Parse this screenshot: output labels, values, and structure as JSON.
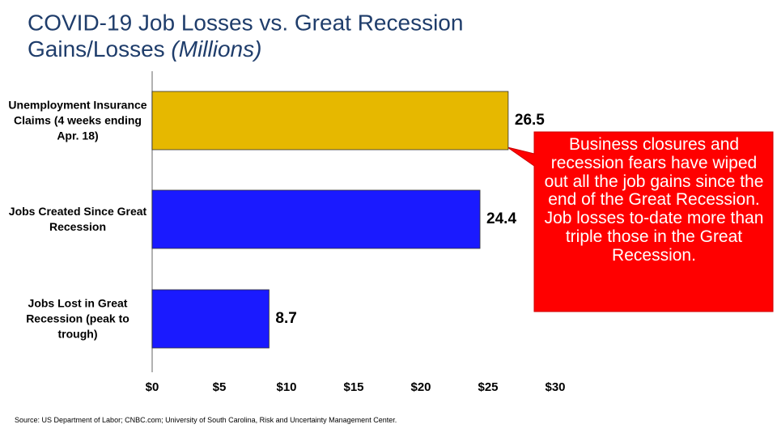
{
  "chart_data": {
    "type": "hbar",
    "title": "COVID-19 Job Losses vs. Great Recession",
    "title_line2": "Gains/Losses",
    "title_unit": "(Millions)",
    "categories": [
      "Unemployment Insurance Claims (4 weeks ending Apr. 18)",
      "Jobs Created Since Great Recession",
      "Jobs Lost in Great Recession (peak to trough)"
    ],
    "values": [
      26.5,
      24.4,
      8.7
    ],
    "colors": [
      "#e6b800",
      "#1a1aff",
      "#1a1aff"
    ],
    "xlim": [
      0,
      30
    ],
    "xticks": [
      {
        "value": 0,
        "label": "$0"
      },
      {
        "value": 5,
        "label": "$5"
      },
      {
        "value": 10,
        "label": "$10"
      },
      {
        "value": 15,
        "label": "$15"
      },
      {
        "value": 20,
        "label": "$20"
      },
      {
        "value": 25,
        "label": "$25"
      },
      {
        "value": 30,
        "label": "$30"
      }
    ],
    "annotation": "Business closures and recession fears have wiped out all the job gains since the end of the Great Recession. Job losses to-date more than triple those in the Great Recession.",
    "source": "Source: US Department of Labor; CNBC.com; University of South Carolina, Risk and Uncertainty Management Center."
  }
}
